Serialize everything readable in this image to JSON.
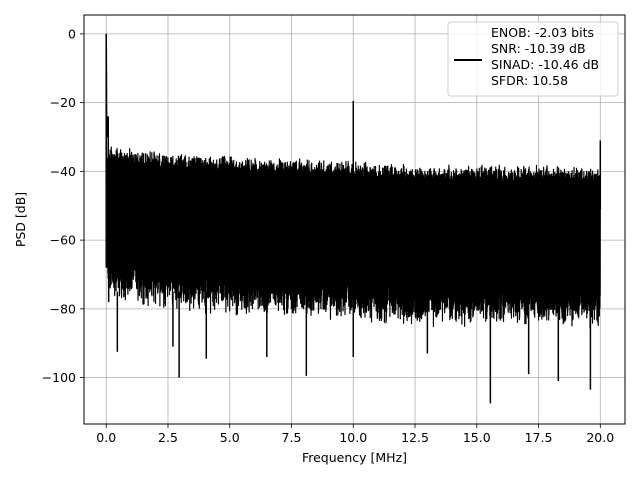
{
  "chart_data": {
    "type": "line",
    "title": "",
    "xlabel": "Frequency [MHz]",
    "ylabel": "PSD [dB]",
    "xlim": [
      -0.9,
      21.0
    ],
    "ylim": [
      -113.5,
      5.5
    ],
    "xticks": [
      0.0,
      2.5,
      5.0,
      7.5,
      10.0,
      12.5,
      15.0,
      17.5,
      20.0
    ],
    "xtick_labels": [
      "0.0",
      "2.5",
      "5.0",
      "7.5",
      "10.0",
      "12.5",
      "15.0",
      "17.5",
      "20.0"
    ],
    "yticks": [
      0,
      -20,
      -40,
      -60,
      -80,
      -100
    ],
    "ytick_labels": [
      "0",
      "−20",
      "−40",
      "−60",
      "−80",
      "−100"
    ],
    "grid": true,
    "legend_position": "upper-right",
    "series": [
      {
        "name": "ENOB: -2.03 bits\nSNR: -10.39 dB\nSINAD: -10.46 dB\nSFDR: 10.58",
        "color": "#000000",
        "description": "noise-like PSD spectrum from 0 to 20 MHz",
        "noise_floor_upper_envelope": {
          "x": [
            0.1,
            2.5,
            5.0,
            7.5,
            10.0,
            12.5,
            15.0,
            17.5,
            20.0
          ],
          "y": [
            -34,
            -36,
            -37,
            -37.5,
            -38.5,
            -39.5,
            -39.5,
            -39.5,
            -40
          ]
        },
        "noise_floor_lower_envelope": {
          "x": [
            0.1,
            2.5,
            5.0,
            7.5,
            10.0,
            12.5,
            15.0,
            17.5,
            20.0
          ],
          "y": [
            -75,
            -78,
            -80,
            -80,
            -82,
            -83,
            -83,
            -83,
            -84
          ]
        },
        "peaks": [
          {
            "x": 0.0,
            "y": 0
          },
          {
            "x": 0.08,
            "y": -24
          },
          {
            "x": 10.0,
            "y": -19.5
          },
          {
            "x": 20.0,
            "y": -31
          }
        ],
        "dips": [
          {
            "x": 0.45,
            "y": -92.5
          },
          {
            "x": 2.7,
            "y": -91
          },
          {
            "x": 2.95,
            "y": -100
          },
          {
            "x": 4.05,
            "y": -94.5
          },
          {
            "x": 6.5,
            "y": -94
          },
          {
            "x": 8.1,
            "y": -99.5
          },
          {
            "x": 10.0,
            "y": -94
          },
          {
            "x": 13.0,
            "y": -93
          },
          {
            "x": 15.55,
            "y": -107.5
          },
          {
            "x": 17.1,
            "y": -99
          },
          {
            "x": 18.3,
            "y": -101
          },
          {
            "x": 19.6,
            "y": -103.5
          }
        ]
      }
    ],
    "legend_entries": [
      "ENOB: -2.03 bits",
      "SNR: -10.39 dB",
      "SINAD: -10.46 dB",
      "SFDR: 10.58"
    ]
  }
}
